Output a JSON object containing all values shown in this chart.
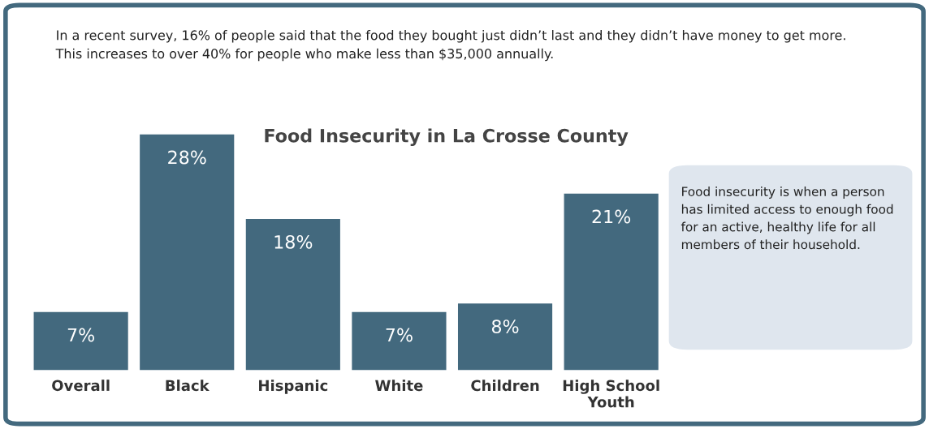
{
  "chart_data": {
    "type": "bar",
    "title": "Food Insecurity in La Crosse County",
    "categories": [
      "Overall",
      "Black",
      "Hispanic",
      "White",
      "Children",
      "High School\nYouth"
    ],
    "values": [
      7,
      28,
      18,
      7,
      8,
      21
    ],
    "value_labels": [
      "7%",
      "28%",
      "18%",
      "7%",
      "8%",
      "21%"
    ],
    "color": "#43697e",
    "grid": false,
    "legend": false,
    "annotations": [
      "In a recent survey, 16% of people said that the food they bought just didn’t last and they didn’t have money to get more. This increases to over 40% for people who make less than $35,000 annually.",
      "Food insecurity is when a person has limited access to enough food for an active, healthy life for all members of their household."
    ]
  }
}
